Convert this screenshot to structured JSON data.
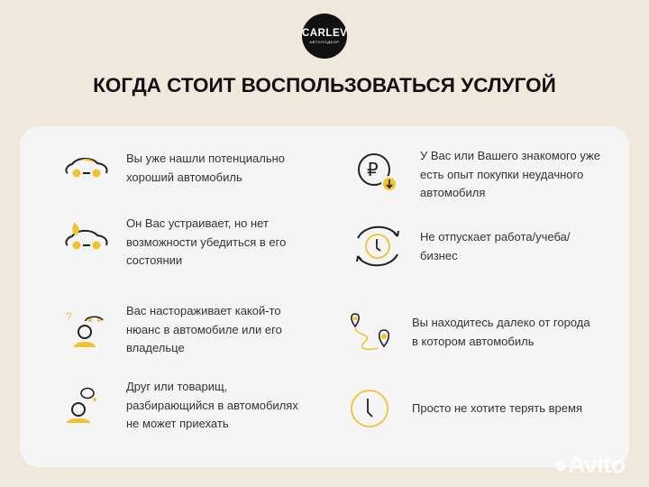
{
  "logo": {
    "name": "CARLEV",
    "sub": "АВТОПОДБОР"
  },
  "title": "КОГДА СТОИТ ВОСПОЛЬЗОВАТЬСЯ УСЛУГОЙ",
  "accent": "#f2c230",
  "items": [
    {
      "icon": "car-icon",
      "text": "Вы уже нашли потенциально\nхороший автомобиль"
    },
    {
      "icon": "car-fire-icon",
      "text": "Он Вас устраивает, но нет\nвозможности убедиться в его\nсостоянии"
    },
    {
      "icon": "person-question-car-icon",
      "text": "Вас настораживает какой-то\nнюанс в автомобиле или его\nвладельце"
    },
    {
      "icon": "person-speech-icon",
      "text": "Друг или товарищ,\nразбирающийся в автомобилях\nне может приехать"
    },
    {
      "icon": "ruble-down-icon",
      "text": "У Вас или Вашего знакомого уже\nесть опыт покупки неудачного\nавтомобиля"
    },
    {
      "icon": "clock-cycle-icon",
      "text": "Не отпускает работа/учеба/\nбизнес"
    },
    {
      "icon": "route-pins-icon",
      "text": "Вы находитесь далеко от города\nв котором автомобиль"
    },
    {
      "icon": "clock-icon",
      "text": "Просто не хотите терять время"
    }
  ],
  "watermark": "Avito"
}
